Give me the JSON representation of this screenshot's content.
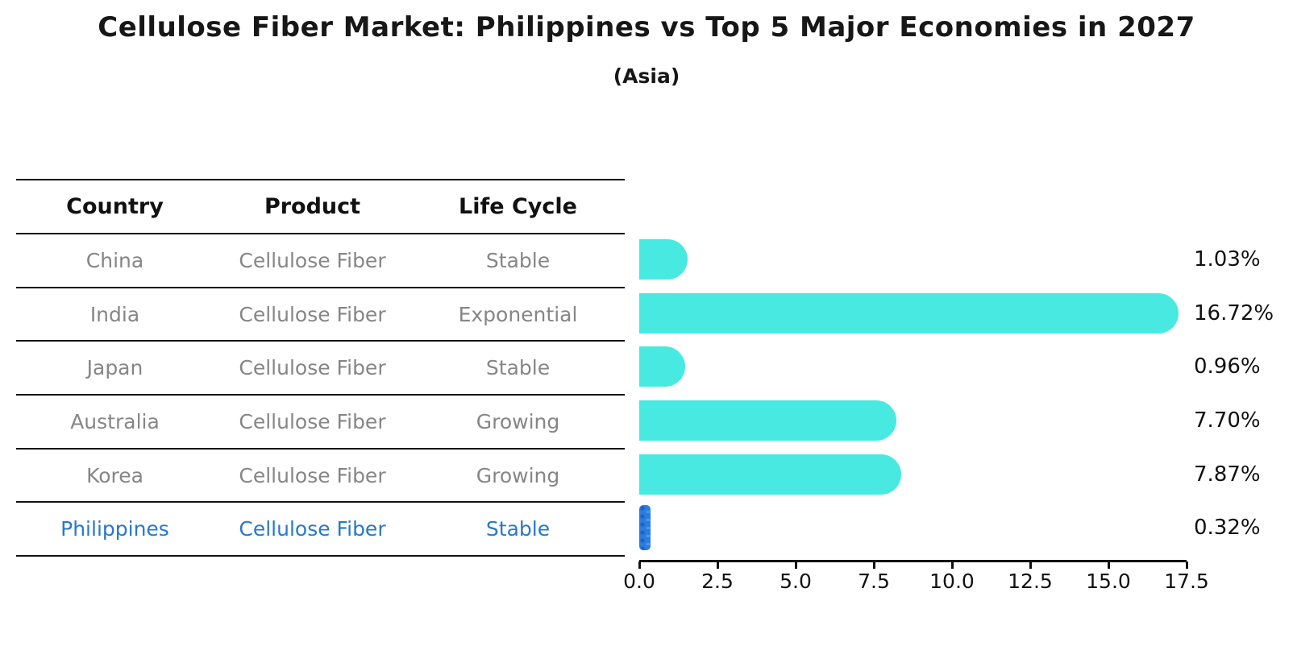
{
  "chart": {
    "title": "Cellulose Fiber Market: Philippines vs Top 5 Major Economies in 2027",
    "subtitle": "(Asia)",
    "colors": {
      "bar": "#47e9e1",
      "highlight_bar": "#2b7cdf",
      "highlight_text": "#2878cd",
      "row_text": "#868686",
      "header_text": "#111111"
    }
  },
  "table": {
    "headers": [
      "Country",
      "Product",
      "Life Cycle"
    ],
    "rows": [
      {
        "country": "China",
        "product": "Cellulose Fiber",
        "life_cycle": "Stable",
        "highlighted": false
      },
      {
        "country": "India",
        "product": "Cellulose Fiber",
        "life_cycle": "Exponential",
        "highlighted": false
      },
      {
        "country": "Japan",
        "product": "Cellulose Fiber",
        "life_cycle": "Stable",
        "highlighted": false
      },
      {
        "country": "Australia",
        "product": "Cellulose Fiber",
        "life_cycle": "Growing",
        "highlighted": false
      },
      {
        "country": "Korea",
        "product": "Cellulose Fiber",
        "life_cycle": "Growing",
        "highlighted": false
      },
      {
        "country": "Philippines",
        "product": "Cellulose Fiber",
        "life_cycle": "Stable",
        "highlighted": true
      }
    ]
  },
  "chart_data": {
    "type": "bar",
    "orientation": "horizontal",
    "title": "Cellulose Fiber Market: Philippines vs Top 5 Major Economies in 2027 (Asia)",
    "categories": [
      "China",
      "India",
      "Japan",
      "Australia",
      "Korea",
      "Philippines"
    ],
    "values": [
      1.03,
      16.72,
      0.96,
      7.7,
      7.87,
      0.32
    ],
    "value_labels": [
      "1.03%",
      "16.72%",
      "0.96%",
      "7.70%",
      "7.87%",
      "0.32%"
    ],
    "highlight_category": "Philippines",
    "xlabel": "",
    "ylabel": "",
    "xlim": [
      0,
      17.5
    ],
    "x_ticks": [
      0.0,
      2.5,
      5.0,
      7.5,
      10.0,
      12.5,
      15.0,
      17.5
    ],
    "x_tick_labels": [
      "0.0",
      "2.5",
      "5.0",
      "7.5",
      "10.0",
      "12.5",
      "15.0",
      "17.5"
    ],
    "grid": false,
    "legend": false
  }
}
